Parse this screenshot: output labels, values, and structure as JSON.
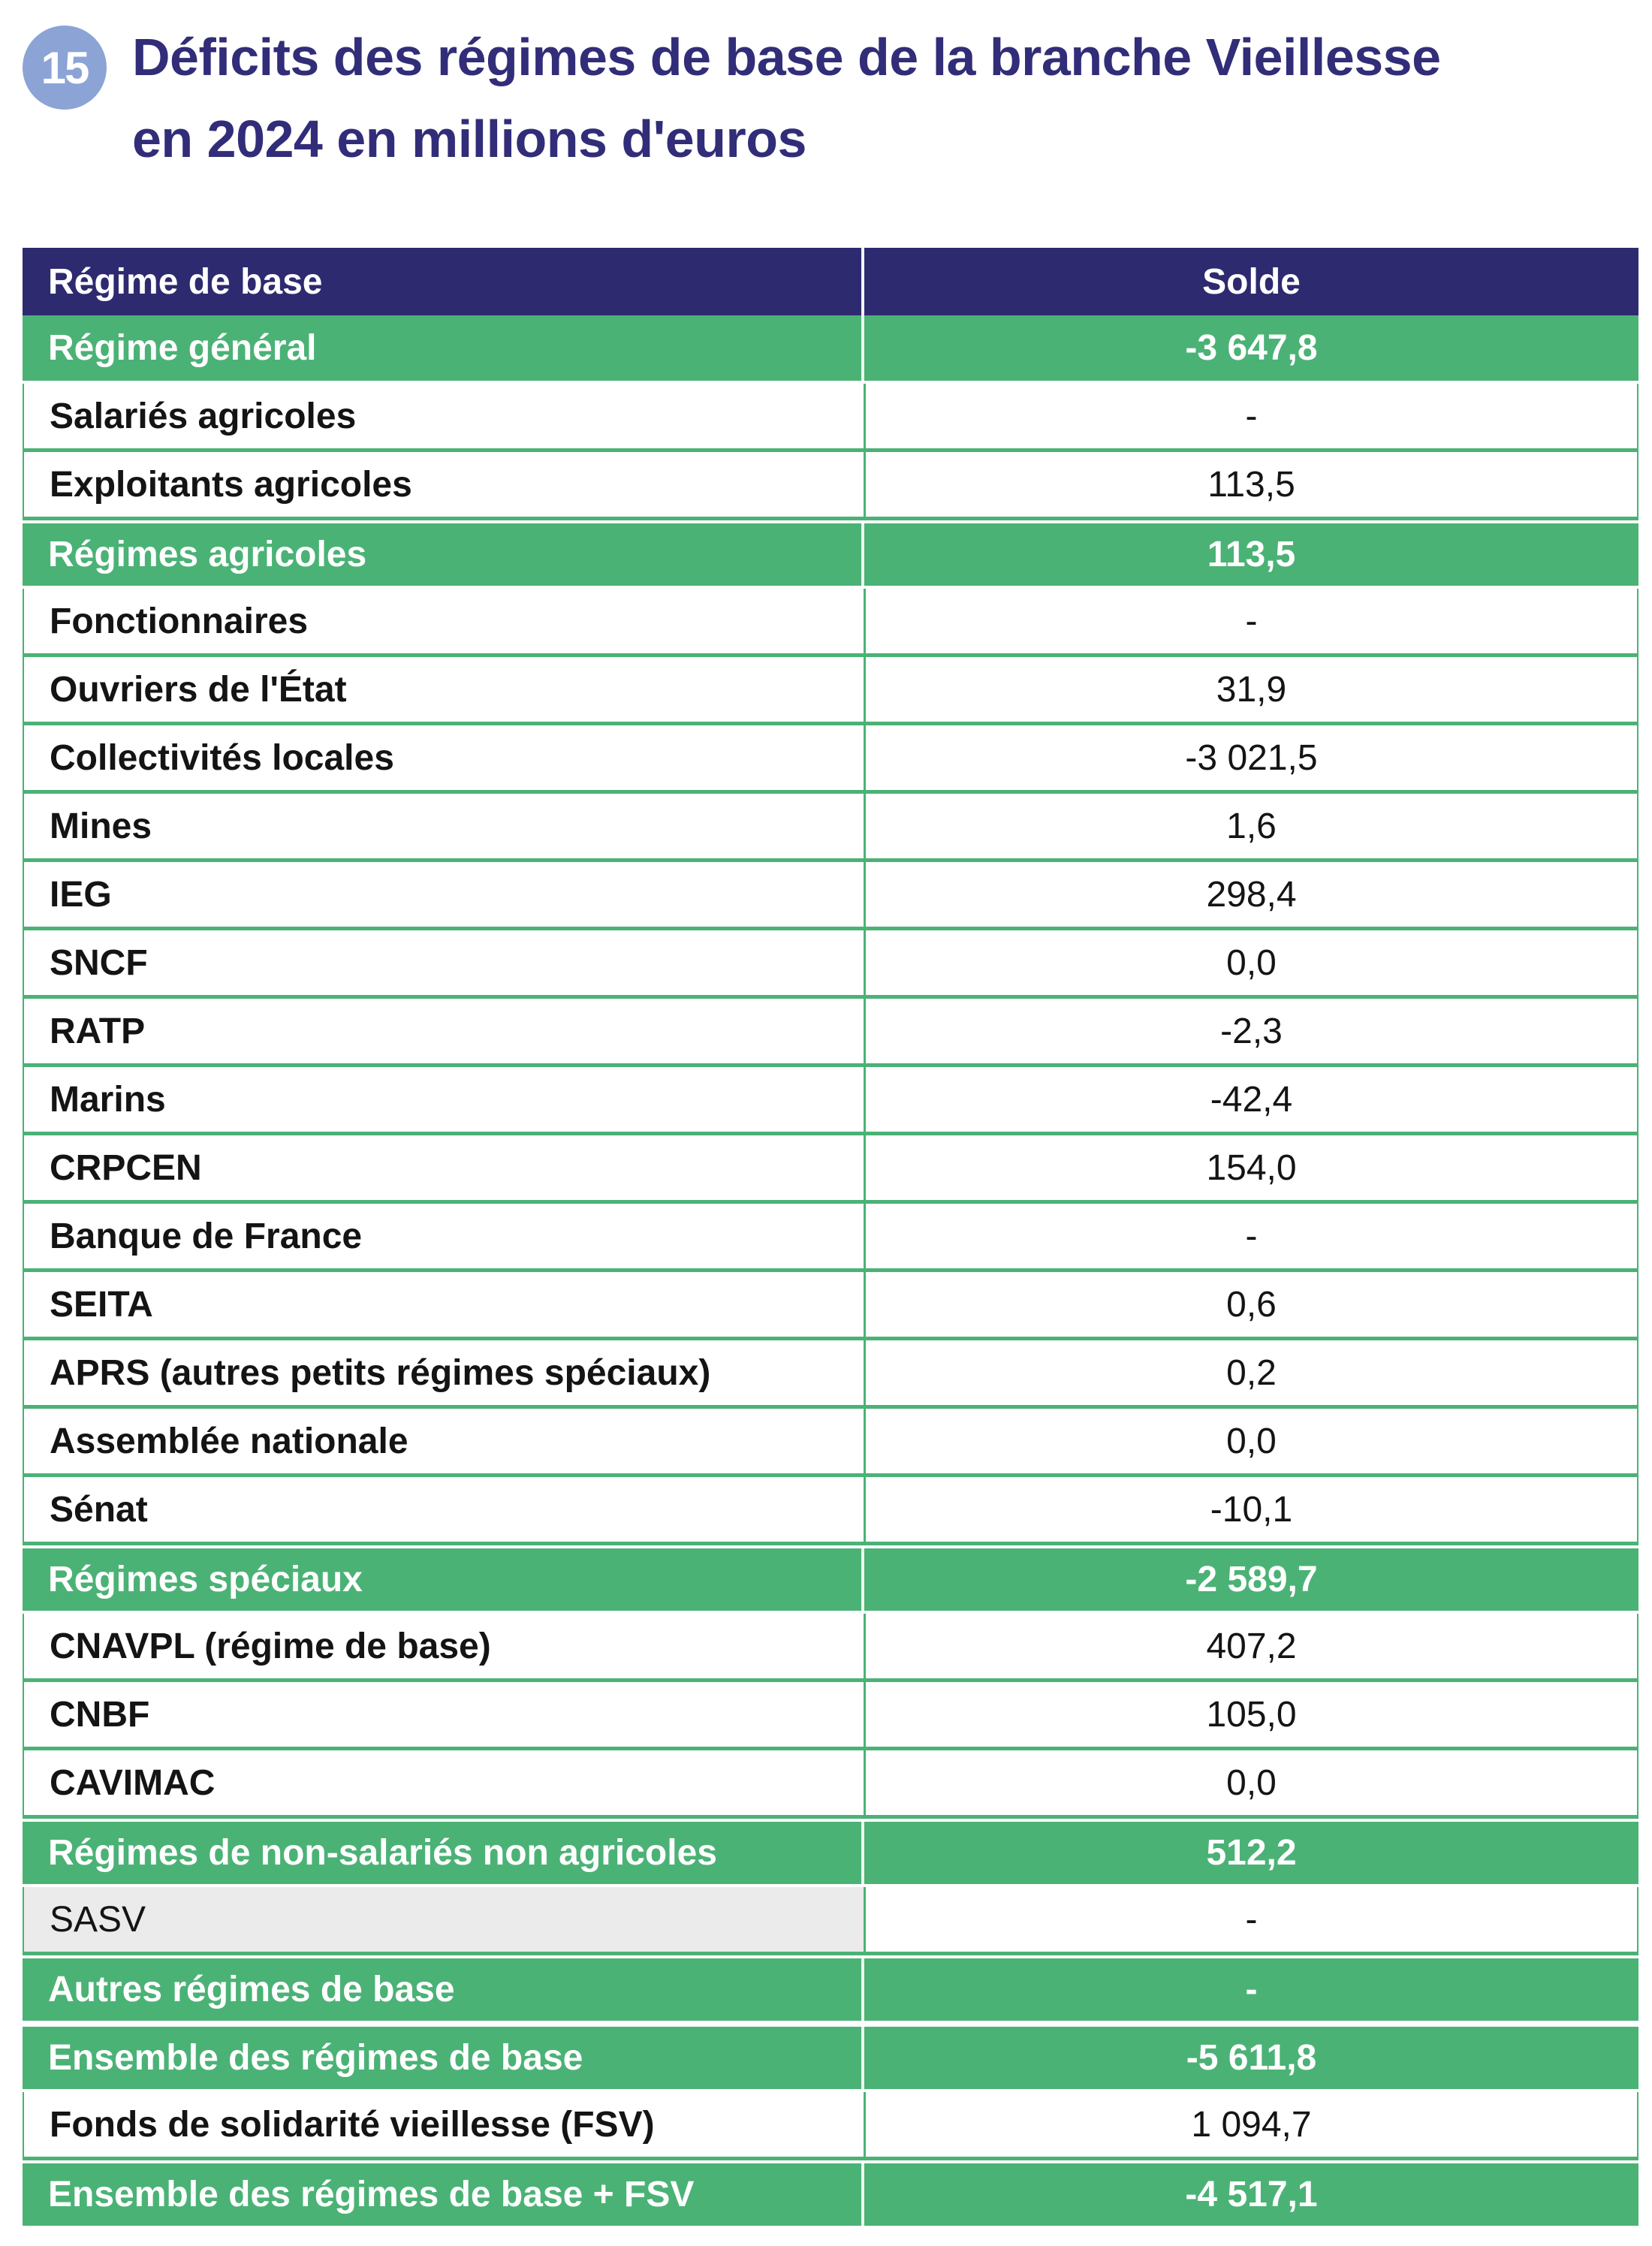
{
  "figure": {
    "badge": "15",
    "title": "Déficits des régimes de base de la branche Vieillesse en 2024 en millions d'euros",
    "title_lines": [
      "Déficits des régimes de base de la branche Vieillesse",
      "en 2024 en millions d'euros"
    ]
  },
  "colors": {
    "header_navy": "#2e2a70",
    "subtotal_green": "#4bb276",
    "badge_blue": "#8ca3d6",
    "title_indigo": "#312d78",
    "sasv_gray": "#ebebeb",
    "row_separator_green": "#4bb276"
  },
  "table": {
    "columns": [
      "Régime de base",
      "Solde"
    ],
    "rows": [
      {
        "label": "Régime général",
        "value": "-3 647,8",
        "type": "green"
      },
      {
        "label": "Salariés agricoles",
        "value": "-",
        "type": "white"
      },
      {
        "label": "Exploitants agricoles",
        "value": "113,5",
        "type": "white"
      },
      {
        "label": "Régimes agricoles",
        "value": "113,5",
        "type": "green"
      },
      {
        "label": "Fonctionnaires",
        "value": "-",
        "type": "white"
      },
      {
        "label": "Ouvriers de l'État",
        "value": "31,9",
        "type": "white"
      },
      {
        "label": "Collectivités locales",
        "value": "-3 021,5",
        "type": "white"
      },
      {
        "label": "Mines",
        "value": "1,6",
        "type": "white"
      },
      {
        "label": "IEG",
        "value": "298,4",
        "type": "white"
      },
      {
        "label": "SNCF",
        "value": "0,0",
        "type": "white"
      },
      {
        "label": "RATP",
        "value": "-2,3",
        "type": "white"
      },
      {
        "label": "Marins",
        "value": "-42,4",
        "type": "white"
      },
      {
        "label": "CRPCEN",
        "value": "154,0",
        "type": "white"
      },
      {
        "label": "Banque de France",
        "value": "-",
        "type": "white"
      },
      {
        "label": "SEITA",
        "value": "0,6",
        "type": "white"
      },
      {
        "label": "APRS (autres petits régimes spéciaux)",
        "value": "0,2",
        "type": "white"
      },
      {
        "label": "Assemblée nationale",
        "value": "0,0",
        "type": "white"
      },
      {
        "label": "Sénat",
        "value": "-10,1",
        "type": "white"
      },
      {
        "label": "Régimes spéciaux",
        "value": "-2 589,7",
        "type": "green"
      },
      {
        "label": "CNAVPL (régime de base)",
        "value": "407,2",
        "type": "white"
      },
      {
        "label": "CNBF",
        "value": "105,0",
        "type": "white"
      },
      {
        "label": "CAVIMAC",
        "value": "0,0",
        "type": "white"
      },
      {
        "label": "Régimes de non-salariés non agricoles",
        "value": "512,2",
        "type": "green"
      },
      {
        "label": "SASV",
        "value": "-",
        "type": "gray"
      },
      {
        "label": "Autres régimes de base",
        "value": "-",
        "type": "green"
      },
      {
        "label": "Ensemble des régimes de base",
        "value": "-5 611,8",
        "type": "green"
      },
      {
        "label": "Fonds de solidarité vieillesse (FSV)",
        "value": "1 094,7",
        "type": "white"
      },
      {
        "label": "Ensemble des régimes de base + FSV",
        "value": "-4 517,1",
        "type": "green"
      }
    ]
  },
  "chart_data": {
    "type": "table",
    "title": "Déficits des régimes de base de la branche Vieillesse en 2024 en millions d'euros",
    "unit": "millions d'euros",
    "columns": [
      "Régime de base",
      "Solde"
    ],
    "rows": [
      [
        "Régime général",
        -3647.8
      ],
      [
        "Salariés agricoles",
        null
      ],
      [
        "Exploitants agricoles",
        113.5
      ],
      [
        "Régimes agricoles",
        113.5
      ],
      [
        "Fonctionnaires",
        null
      ],
      [
        "Ouvriers de l'État",
        31.9
      ],
      [
        "Collectivités locales",
        -3021.5
      ],
      [
        "Mines",
        1.6
      ],
      [
        "IEG",
        298.4
      ],
      [
        "SNCF",
        0.0
      ],
      [
        "RATP",
        -2.3
      ],
      [
        "Marins",
        -42.4
      ],
      [
        "CRPCEN",
        154.0
      ],
      [
        "Banque de France",
        null
      ],
      [
        "SEITA",
        0.6
      ],
      [
        "APRS (autres petits régimes spéciaux)",
        0.2
      ],
      [
        "Assemblée nationale",
        0.0
      ],
      [
        "Sénat",
        -10.1
      ],
      [
        "Régimes spéciaux",
        -2589.7
      ],
      [
        "CNAVPL (régime de base)",
        407.2
      ],
      [
        "CNBF",
        105.0
      ],
      [
        "CAVIMAC",
        0.0
      ],
      [
        "Régimes de non-salariés non agricoles",
        512.2
      ],
      [
        "SASV",
        null
      ],
      [
        "Autres régimes de base",
        null
      ],
      [
        "Ensemble des régimes de base",
        -5611.8
      ],
      [
        "Fonds de solidarité vieillesse (FSV)",
        1094.7
      ],
      [
        "Ensemble des régimes de base + FSV",
        -4517.1
      ]
    ]
  }
}
